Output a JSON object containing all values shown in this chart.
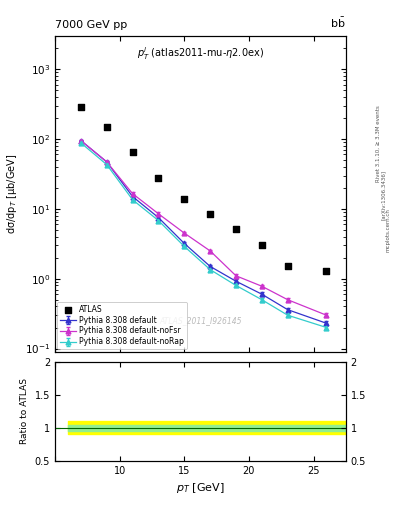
{
  "title_main": "7000 GeV pp",
  "annotation_center": "$p_T^l$ (atlas2011-mu-η2.0ex)",
  "watermark": "ATLAS_2011_I926145",
  "right_label": "Rivet 3.1.10, ≥ 3.3M events",
  "arxiv_label": "[arXiv:1306.3436]",
  "website_label": "mcplots.cern.ch",
  "atlas_x": [
    7.0,
    9.0,
    11.0,
    13.0,
    15.0,
    17.0,
    19.0,
    21.0,
    23.0,
    26.0
  ],
  "atlas_y": [
    290.0,
    150.0,
    65.0,
    28.0,
    14.0,
    8.5,
    5.2,
    3.0,
    1.5,
    1.3
  ],
  "pythia_x": [
    7.0,
    9.0,
    11.0,
    13.0,
    15.0,
    17.0,
    19.0,
    21.0,
    23.0,
    26.0
  ],
  "pythia_default_y": [
    95.0,
    47.0,
    15.0,
    7.5,
    3.2,
    1.5,
    0.92,
    0.6,
    0.36,
    0.23
  ],
  "pythia_nofsr_y": [
    95.0,
    47.0,
    16.5,
    8.5,
    4.5,
    2.5,
    1.1,
    0.78,
    0.5,
    0.3
  ],
  "pythia_norap_y": [
    88.0,
    43.0,
    13.5,
    6.8,
    2.9,
    1.35,
    0.8,
    0.5,
    0.3,
    0.2
  ],
  "pythia_default_err": [
    2.5,
    1.8,
    0.7,
    0.35,
    0.15,
    0.09,
    0.055,
    0.035,
    0.022,
    0.014
  ],
  "pythia_nofsr_err": [
    2.5,
    1.8,
    0.8,
    0.4,
    0.2,
    0.11,
    0.065,
    0.045,
    0.028,
    0.018
  ],
  "pythia_norap_err": [
    2.3,
    1.6,
    0.65,
    0.32,
    0.14,
    0.08,
    0.048,
    0.03,
    0.019,
    0.012
  ],
  "color_default": "#3333cc",
  "color_nofsr": "#cc33cc",
  "color_norap": "#33cccc",
  "xlabel": "$p_T$ [GeV]",
  "ylabel": "dσ/dp$_T$ [μb/GeV]",
  "ratio_ylabel": "Ratio to ATLAS",
  "xlim": [
    6.0,
    27.5
  ],
  "ylim_log": [
    0.09,
    3000
  ],
  "ylim_ratio": [
    0.5,
    2.0
  ],
  "band_yellow": [
    0.9,
    1.1
  ],
  "band_green": [
    0.95,
    1.05
  ],
  "xticks": [
    5,
    10,
    15,
    20,
    25
  ],
  "xtick_labels": [
    "",
    "10",
    "15",
    "20",
    "25"
  ]
}
